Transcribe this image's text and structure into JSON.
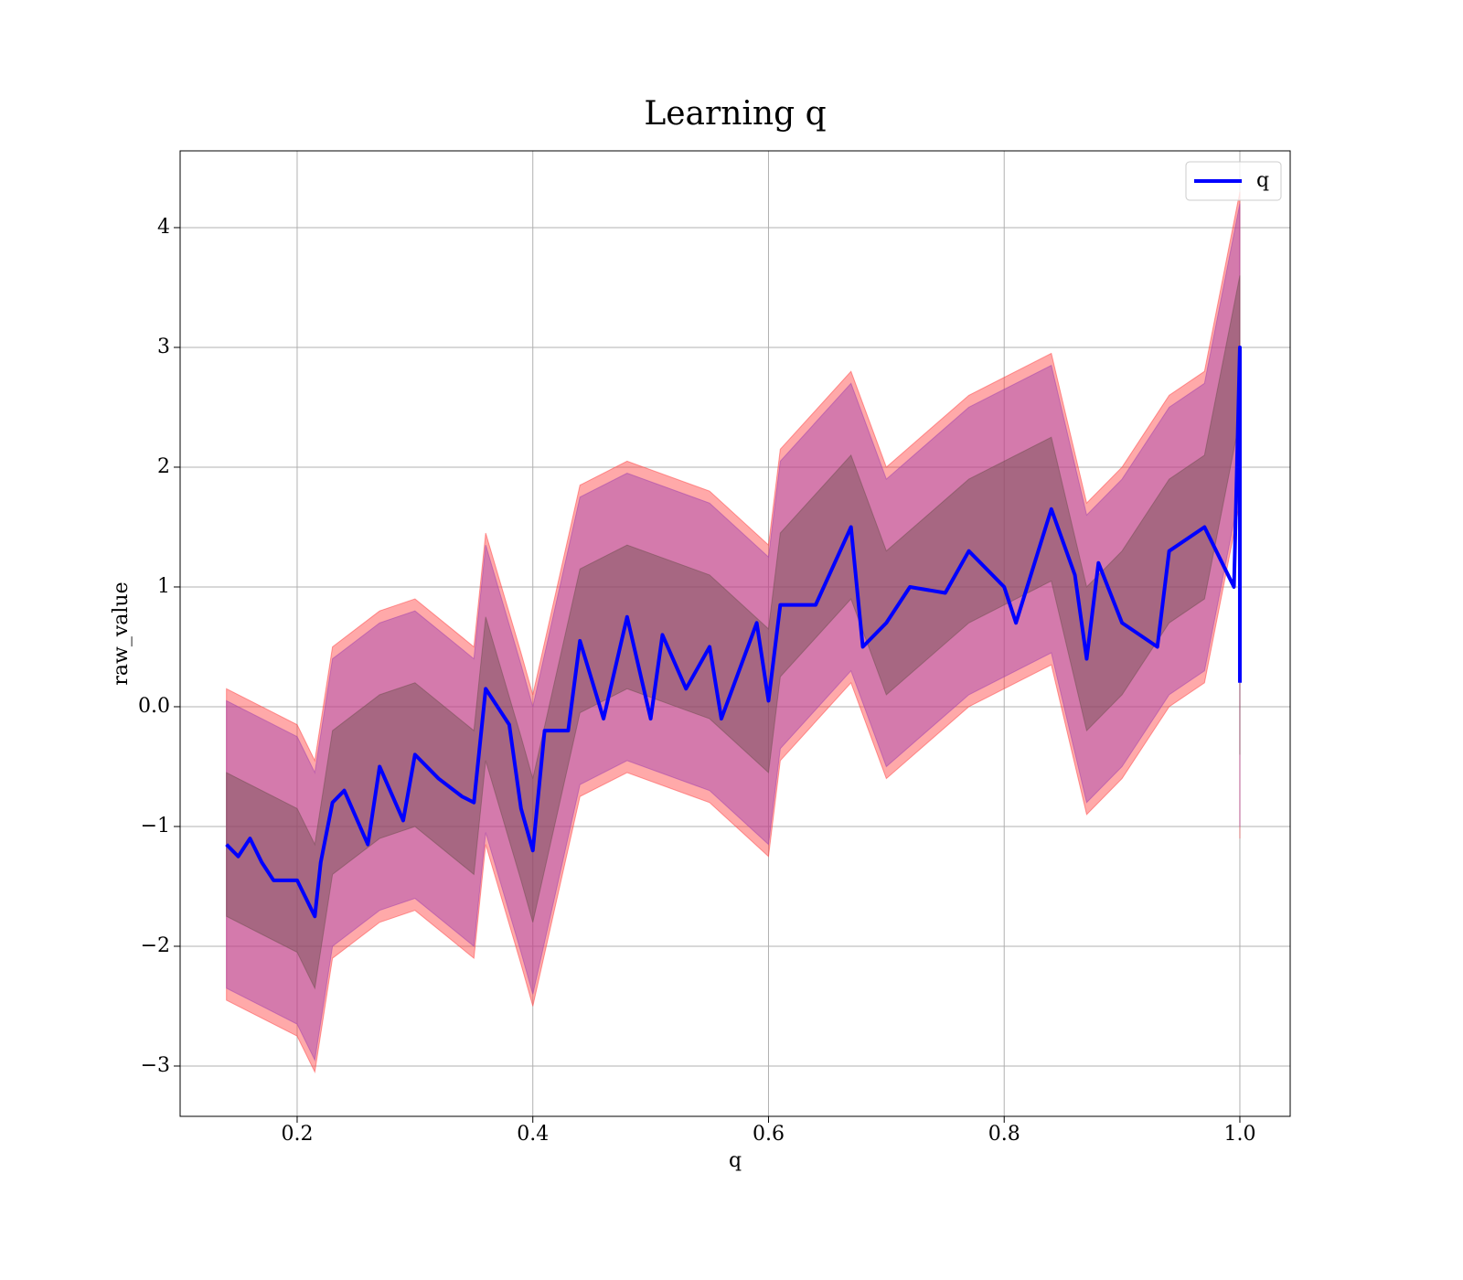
{
  "chart_data": {
    "type": "line",
    "title": "Learning q",
    "x_label": "q",
    "y_label": "raw_value",
    "x": [
      0.14,
      0.15,
      0.16,
      0.17,
      0.18,
      0.2,
      0.215,
      0.22,
      0.23,
      0.24,
      0.26,
      0.27,
      0.29,
      0.3,
      0.32,
      0.34,
      0.35,
      0.36,
      0.38,
      0.39,
      0.4,
      0.41,
      0.43,
      0.44,
      0.46,
      0.48,
      0.5,
      0.51,
      0.53,
      0.55,
      0.56,
      0.59,
      0.6,
      0.61,
      0.64,
      0.67,
      0.68,
      0.7,
      0.72,
      0.75,
      0.77,
      0.8,
      0.81,
      0.84,
      0.86,
      0.87,
      0.88,
      0.9,
      0.93,
      0.94,
      0.97,
      0.995,
      1.0,
      1.0
    ],
    "series": [
      {
        "name": "q",
        "color": "#0000ff",
        "values": [
          -1.15,
          -1.25,
          -1.1,
          -1.3,
          -1.45,
          -1.45,
          -1.75,
          -1.3,
          -0.8,
          -0.7,
          -1.15,
          -0.5,
          -0.95,
          -0.4,
          -0.6,
          -0.75,
          -0.8,
          0.15,
          -0.15,
          -0.85,
          -1.2,
          -0.2,
          -0.2,
          0.55,
          -0.1,
          0.75,
          -0.1,
          0.6,
          0.15,
          0.5,
          -0.1,
          0.7,
          0.05,
          0.85,
          0.85,
          1.5,
          0.5,
          0.7,
          1.0,
          0.95,
          1.3,
          1.0,
          0.7,
          1.65,
          1.1,
          0.4,
          1.2,
          0.7,
          0.5,
          1.3,
          1.5,
          1.0,
          3.0,
          0.2
        ]
      }
    ],
    "bands": [
      {
        "color": "#ff4040",
        "x": [
          0.14,
          0.17,
          0.2,
          0.215,
          0.23,
          0.27,
          0.3,
          0.35,
          0.36,
          0.39,
          0.4,
          0.44,
          0.48,
          0.55,
          0.6,
          0.61,
          0.67,
          0.7,
          0.77,
          0.84,
          0.87,
          0.9,
          0.94,
          0.97,
          1.0,
          1.0
        ],
        "lower": [
          -2.45,
          -2.6,
          -2.75,
          -3.05,
          -2.1,
          -1.8,
          -1.7,
          -2.1,
          -1.15,
          -2.15,
          -2.5,
          -0.75,
          -0.55,
          -0.8,
          -1.25,
          -0.45,
          0.2,
          -0.6,
          0,
          0.35,
          -0.9,
          -0.6,
          0,
          0.2,
          1.7,
          -1.1
        ],
        "upper": [
          0.15,
          0,
          -0.15,
          -0.45,
          0.5,
          0.8,
          0.9,
          0.5,
          1.45,
          0.45,
          0.1,
          1.85,
          2.05,
          1.8,
          1.35,
          2.15,
          2.8,
          2.0,
          2.6,
          2.95,
          1.7,
          2.0,
          2.6,
          2.8,
          4.3,
          1.5
        ]
      },
      {
        "color": "#a040b0",
        "x": [
          0.14,
          0.17,
          0.2,
          0.215,
          0.23,
          0.27,
          0.3,
          0.35,
          0.36,
          0.39,
          0.4,
          0.44,
          0.48,
          0.55,
          0.6,
          0.61,
          0.67,
          0.7,
          0.77,
          0.84,
          0.87,
          0.9,
          0.94,
          0.97,
          1.0,
          1.0
        ],
        "lower": [
          -2.35,
          -2.5,
          -2.65,
          -2.95,
          -2.0,
          -1.7,
          -1.6,
          -2.0,
          -1.05,
          -2.05,
          -2.4,
          -0.65,
          -0.45,
          -0.7,
          -1.15,
          -0.35,
          0.3,
          -0.5,
          0.1,
          0.45,
          -0.8,
          -0.5,
          0.1,
          0.3,
          1.8,
          -1.0
        ],
        "upper": [
          0.05,
          -0.1,
          -0.25,
          -0.55,
          0.4,
          0.7,
          0.8,
          0.4,
          1.35,
          0.35,
          0,
          1.75,
          1.95,
          1.7,
          1.25,
          2.05,
          2.7,
          1.9,
          2.5,
          2.85,
          1.6,
          1.9,
          2.5,
          2.7,
          4.2,
          1.4
        ]
      },
      {
        "color": "#705050",
        "x": [
          0.14,
          0.17,
          0.2,
          0.215,
          0.23,
          0.27,
          0.3,
          0.35,
          0.36,
          0.39,
          0.4,
          0.44,
          0.48,
          0.55,
          0.6,
          0.61,
          0.67,
          0.7,
          0.77,
          0.84,
          0.87,
          0.9,
          0.94,
          0.97,
          1.0,
          1.0
        ],
        "lower": [
          -1.75,
          -1.9,
          -2.05,
          -2.35,
          -1.4,
          -1.1,
          -1.0,
          -1.4,
          -0.45,
          -1.45,
          -1.8,
          -0.05,
          0.15,
          -0.1,
          -0.55,
          0.25,
          0.9,
          0.1,
          0.7,
          1.05,
          -0.2,
          0.1,
          0.7,
          0.9,
          2.4,
          -0.4
        ],
        "upper": [
          -0.55,
          -0.7,
          -0.85,
          -1.15,
          -0.2,
          0.1,
          0.2,
          -0.2,
          0.75,
          -0.25,
          -0.6,
          1.15,
          1.35,
          1.1,
          0.65,
          1.45,
          2.1,
          1.3,
          1.9,
          2.25,
          1.0,
          1.3,
          1.9,
          2.1,
          3.6,
          0.8
        ]
      }
    ],
    "xlim": [
      0.1007,
      1.0427
    ],
    "ylim": [
      -3.42,
      4.641
    ],
    "xticks": [
      0.2,
      0.4,
      0.6,
      0.8,
      {
        "value": 1,
        "label": "1.0"
      }
    ],
    "yticks": [
      {
        "value": -3,
        "label": "−3"
      },
      {
        "value": -2,
        "label": "−2"
      },
      {
        "value": -1,
        "label": "−1"
      },
      {
        "value": 0,
        "label": "0.0"
      },
      1,
      2,
      3,
      4
    ],
    "grid": true,
    "legend": "upper right"
  }
}
